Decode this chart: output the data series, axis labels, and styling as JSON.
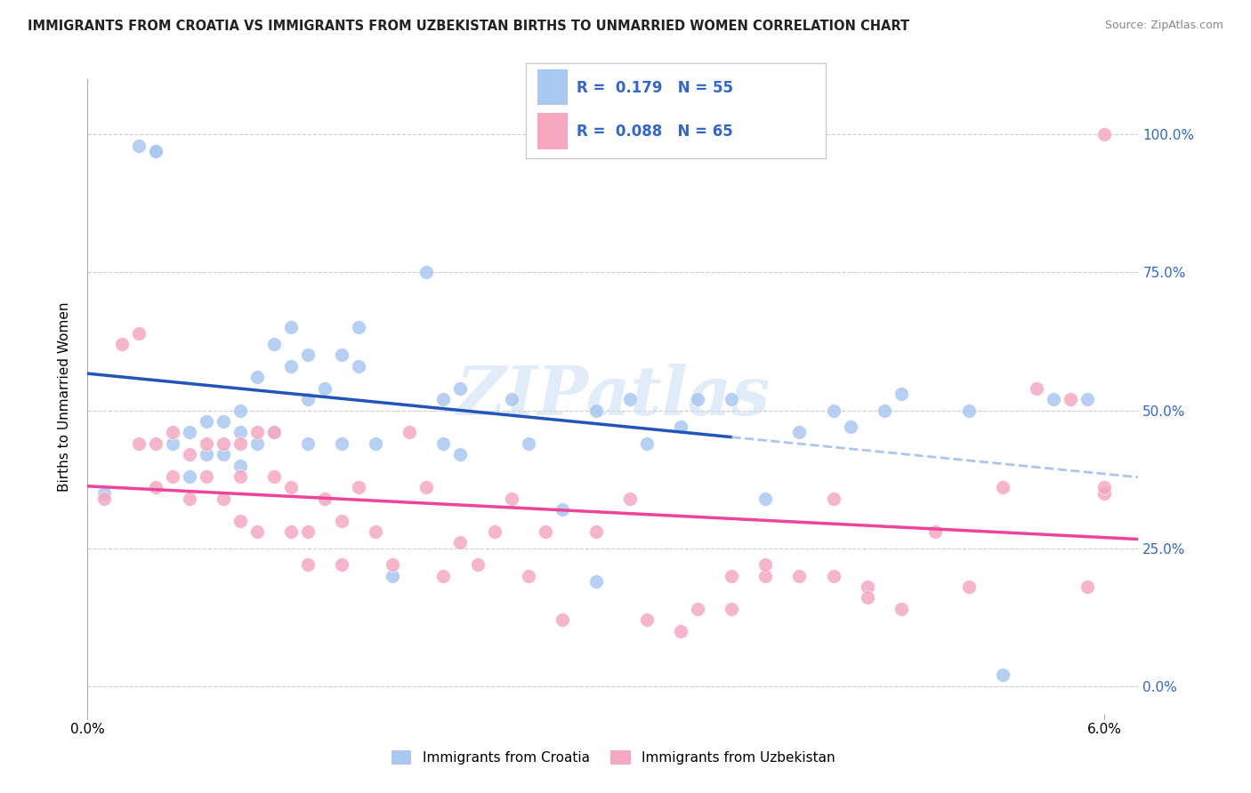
{
  "title": "IMMIGRANTS FROM CROATIA VS IMMIGRANTS FROM UZBEKISTAN BIRTHS TO UNMARRIED WOMEN CORRELATION CHART",
  "source": "Source: ZipAtlas.com",
  "ylabel": "Births to Unmarried Women",
  "ytick_labels": [
    "0.0%",
    "25.0%",
    "50.0%",
    "75.0%",
    "100.0%"
  ],
  "ytick_values": [
    0.0,
    0.25,
    0.5,
    0.75,
    1.0
  ],
  "xlim": [
    0.0,
    0.062
  ],
  "ylim": [
    -0.05,
    1.1
  ],
  "croatia_color": "#A8C8F0",
  "uzbekistan_color": "#F5A8C0",
  "croatia_line_color": "#2255BB",
  "uzbekistan_line_color": "#EE4499",
  "trend_line_dashed_color": "#A8C8F0",
  "legend_R_N_color": "#3366CC",
  "R_croatia": 0.179,
  "N_croatia": 55,
  "R_uzbekistan": 0.088,
  "N_uzbekistan": 65,
  "watermark": "ZIPatlas",
  "bottom_legend1": "Immigrants from Croatia",
  "bottom_legend2": "Immigrants from Uzbekistan",
  "croatia_scatter_x": [
    0.001,
    0.003,
    0.004,
    0.004,
    0.005,
    0.006,
    0.006,
    0.007,
    0.007,
    0.008,
    0.008,
    0.009,
    0.009,
    0.009,
    0.01,
    0.01,
    0.011,
    0.011,
    0.012,
    0.012,
    0.013,
    0.013,
    0.013,
    0.014,
    0.015,
    0.015,
    0.016,
    0.016,
    0.017,
    0.018,
    0.02,
    0.021,
    0.021,
    0.022,
    0.022,
    0.025,
    0.026,
    0.028,
    0.03,
    0.03,
    0.032,
    0.033,
    0.035,
    0.036,
    0.038,
    0.04,
    0.042,
    0.044,
    0.045,
    0.047,
    0.048,
    0.052,
    0.054,
    0.057,
    0.059
  ],
  "croatia_scatter_y": [
    0.35,
    0.98,
    0.97,
    0.97,
    0.44,
    0.46,
    0.38,
    0.48,
    0.42,
    0.48,
    0.42,
    0.5,
    0.46,
    0.4,
    0.56,
    0.44,
    0.62,
    0.46,
    0.65,
    0.58,
    0.6,
    0.52,
    0.44,
    0.54,
    0.6,
    0.44,
    0.65,
    0.58,
    0.44,
    0.2,
    0.75,
    0.52,
    0.44,
    0.54,
    0.42,
    0.52,
    0.44,
    0.32,
    0.19,
    0.5,
    0.52,
    0.44,
    0.47,
    0.52,
    0.52,
    0.34,
    0.46,
    0.5,
    0.47,
    0.5,
    0.53,
    0.5,
    0.02,
    0.52,
    0.52
  ],
  "uzbekistan_scatter_x": [
    0.001,
    0.002,
    0.003,
    0.003,
    0.004,
    0.004,
    0.005,
    0.005,
    0.006,
    0.006,
    0.007,
    0.007,
    0.008,
    0.008,
    0.009,
    0.009,
    0.009,
    0.01,
    0.01,
    0.011,
    0.011,
    0.012,
    0.012,
    0.013,
    0.013,
    0.014,
    0.015,
    0.015,
    0.016,
    0.017,
    0.018,
    0.019,
    0.02,
    0.021,
    0.022,
    0.023,
    0.024,
    0.025,
    0.026,
    0.027,
    0.028,
    0.03,
    0.032,
    0.033,
    0.035,
    0.036,
    0.038,
    0.04,
    0.042,
    0.044,
    0.046,
    0.048,
    0.05,
    0.052,
    0.054,
    0.056,
    0.058,
    0.059,
    0.06,
    0.06,
    0.06,
    0.044,
    0.046,
    0.038,
    0.04
  ],
  "uzbekistan_scatter_y": [
    0.34,
    0.62,
    0.64,
    0.44,
    0.44,
    0.36,
    0.46,
    0.38,
    0.42,
    0.34,
    0.44,
    0.38,
    0.44,
    0.34,
    0.44,
    0.38,
    0.3,
    0.46,
    0.28,
    0.46,
    0.38,
    0.28,
    0.36,
    0.28,
    0.22,
    0.34,
    0.3,
    0.22,
    0.36,
    0.28,
    0.22,
    0.46,
    0.36,
    0.2,
    0.26,
    0.22,
    0.28,
    0.34,
    0.2,
    0.28,
    0.12,
    0.28,
    0.34,
    0.12,
    0.1,
    0.14,
    0.14,
    0.2,
    0.2,
    0.34,
    0.18,
    0.14,
    0.28,
    0.18,
    0.36,
    0.54,
    0.52,
    0.18,
    0.35,
    1.0,
    0.36,
    0.2,
    0.16,
    0.2,
    0.22
  ]
}
